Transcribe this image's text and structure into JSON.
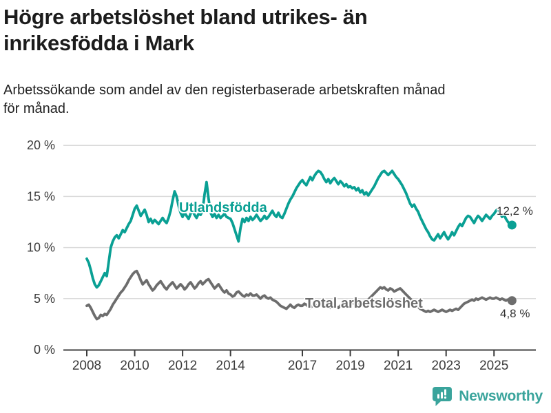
{
  "title": "Högre arbetslöshet bland utrikes- än inrikesfödda i Mark",
  "title_lines": [
    "Högre arbetslöshet bland utrikes- än",
    "inrikesfödda i Mark"
  ],
  "subtitle": "Arbetssökande som andel av den registerbaserade arbetskraften månad för månad.",
  "subtitle_lines": [
    "Arbetssökande som andel av den registerbaserade arbetskraften månad",
    "för månad."
  ],
  "footer": {
    "brand": "Newsworthy",
    "logo_icon": "bar-chart-speech-bubble-icon"
  },
  "colors": {
    "teal_series": "#0aa094",
    "gray_series": "#6d6d6d",
    "axis_text": "#3c3c3c",
    "axis_line": "#3c3c3c",
    "grid_line": "#dadada",
    "value_label": "#333333",
    "title_text": "#1c1c1c",
    "logo_teal": "#3aa49c"
  },
  "chart_data": {
    "type": "line",
    "title": "Högre arbetslöshet bland utrikes- än inrikesfödda i Mark",
    "subtitle": "Arbetssökande som andel av den registerbaserade arbetskraften månad för månad.",
    "frequency": "monthly",
    "x_start": {
      "year": 2008,
      "month": 1
    },
    "x_end": {
      "year": 2025,
      "month": 10
    },
    "x_tick_years": [
      2008,
      2010,
      2012,
      2014,
      2017,
      2019,
      2021,
      2023,
      2025
    ],
    "y_ticks": [
      {
        "value": 0,
        "label": "0 %"
      },
      {
        "value": 5,
        "label": "5 %"
      },
      {
        "value": 10,
        "label": "10 %"
      },
      {
        "value": 15,
        "label": "15 %"
      },
      {
        "value": 20,
        "label": "20 %"
      }
    ],
    "ylim": [
      0,
      20
    ],
    "grid": true,
    "legend_position": "inline-labels",
    "series": [
      {
        "name": "Utlandsfödda",
        "slug": "utlandsfodda",
        "color": "#0aa094",
        "end_label": "12,2 %",
        "values": [
          8.9,
          8.5,
          7.8,
          7.0,
          6.4,
          6.1,
          6.3,
          6.7,
          7.1,
          7.5,
          7.2,
          8.6,
          10.0,
          10.6,
          11.0,
          11.2,
          10.9,
          11.3,
          11.7,
          11.5,
          11.9,
          12.3,
          12.6,
          13.2,
          13.8,
          14.1,
          13.6,
          13.1,
          13.4,
          13.7,
          13.2,
          12.5,
          12.8,
          12.4,
          12.7,
          12.5,
          12.3,
          12.6,
          12.9,
          12.6,
          12.4,
          12.9,
          13.6,
          14.6,
          15.5,
          15.0,
          14.1,
          13.4,
          13.0,
          13.4,
          13.1,
          12.8,
          13.3,
          13.6,
          13.2,
          12.9,
          13.3,
          13.2,
          13.6,
          15.2,
          16.4,
          14.8,
          13.4,
          13.0,
          13.3,
          12.9,
          13.2,
          12.9,
          13.1,
          13.3,
          13.0,
          12.9,
          12.8,
          12.4,
          11.8,
          11.2,
          10.6,
          11.9,
          12.8,
          12.5,
          12.9,
          12.6,
          13.0,
          12.7,
          12.9,
          13.2,
          12.9,
          12.6,
          12.8,
          13.1,
          12.8,
          13.0,
          13.3,
          13.6,
          13.2,
          13.0,
          13.4,
          13.0,
          12.9,
          13.3,
          13.8,
          14.3,
          14.7,
          15.0,
          15.4,
          15.8,
          16.1,
          16.4,
          16.6,
          16.3,
          16.1,
          16.5,
          16.9,
          16.6,
          17.0,
          17.3,
          17.5,
          17.4,
          17.1,
          16.7,
          16.4,
          16.7,
          16.3,
          16.6,
          16.8,
          16.5,
          16.2,
          16.5,
          16.3,
          16.0,
          16.2,
          15.9,
          16.0,
          15.8,
          15.9,
          15.6,
          15.8,
          15.4,
          15.6,
          15.2,
          15.4,
          15.1,
          15.4,
          15.7,
          16.0,
          16.4,
          16.8,
          17.1,
          17.4,
          17.5,
          17.3,
          17.1,
          17.3,
          17.5,
          17.2,
          16.9,
          16.7,
          16.4,
          16.1,
          15.7,
          15.3,
          14.8,
          14.3,
          14.0,
          14.2,
          13.8,
          13.5,
          13.0,
          12.6,
          12.2,
          11.8,
          11.5,
          11.1,
          10.8,
          10.7,
          11.0,
          11.3,
          10.9,
          11.2,
          11.5,
          11.1,
          10.8,
          11.1,
          11.5,
          11.2,
          11.6,
          12.0,
          12.3,
          12.1,
          12.5,
          12.9,
          13.1,
          13.0,
          12.7,
          12.4,
          12.8,
          13.1,
          12.9,
          12.6,
          12.9,
          13.2,
          13.0,
          12.8,
          13.1,
          13.3,
          13.6,
          13.8,
          13.4,
          13.0,
          13.2,
          12.8,
          12.5,
          12.3,
          12.2
        ]
      },
      {
        "name": "Total arbetslöshet",
        "slug": "total-arbetsloshet",
        "color": "#6d6d6d",
        "end_label": "4,8 %",
        "values": [
          4.3,
          4.4,
          4.1,
          3.7,
          3.3,
          3.0,
          3.1,
          3.4,
          3.3,
          3.5,
          3.4,
          3.7,
          4.0,
          4.4,
          4.7,
          5.0,
          5.3,
          5.6,
          5.8,
          6.1,
          6.4,
          6.8,
          7.1,
          7.4,
          7.6,
          7.7,
          7.3,
          6.8,
          6.4,
          6.6,
          6.8,
          6.4,
          6.1,
          5.8,
          6.0,
          6.3,
          6.5,
          6.7,
          6.4,
          6.1,
          5.9,
          6.2,
          6.4,
          6.6,
          6.3,
          6.0,
          6.2,
          6.4,
          6.2,
          5.9,
          6.1,
          6.4,
          6.6,
          6.3,
          6.0,
          6.2,
          6.5,
          6.7,
          6.4,
          6.6,
          6.8,
          6.9,
          6.6,
          6.3,
          6.0,
          6.2,
          6.4,
          6.1,
          5.8,
          5.6,
          5.8,
          5.5,
          5.4,
          5.2,
          5.3,
          5.6,
          5.7,
          5.5,
          5.3,
          5.2,
          5.4,
          5.3,
          5.5,
          5.3,
          5.3,
          5.4,
          5.2,
          5.0,
          5.2,
          5.3,
          5.1,
          5.0,
          5.1,
          4.9,
          4.8,
          4.7,
          4.5,
          4.3,
          4.2,
          4.1,
          4.0,
          4.2,
          4.4,
          4.2,
          4.1,
          4.3,
          4.4,
          4.3,
          4.3,
          4.5,
          4.4,
          4.2,
          4.1,
          4.3,
          4.5,
          4.3,
          4.2,
          4.4,
          4.6,
          4.4,
          4.3,
          4.2,
          4.1,
          4.3,
          4.4,
          4.2,
          4.1,
          4.3,
          4.5,
          4.4,
          4.6,
          4.5,
          4.4,
          4.6,
          4.5,
          4.3,
          4.5,
          4.7,
          4.6,
          4.8,
          4.7,
          4.9,
          5.1,
          5.3,
          5.5,
          5.7,
          5.9,
          6.1,
          6.0,
          6.1,
          5.9,
          5.8,
          6.0,
          5.9,
          5.7,
          5.8,
          5.9,
          6.0,
          5.8,
          5.6,
          5.4,
          5.2,
          5.0,
          4.8,
          4.6,
          4.4,
          4.2,
          4.0,
          3.9,
          3.8,
          3.7,
          3.8,
          3.7,
          3.8,
          3.9,
          3.8,
          3.7,
          3.8,
          3.9,
          3.8,
          3.7,
          3.8,
          3.9,
          3.8,
          3.9,
          4.0,
          3.9,
          4.1,
          4.3,
          4.5,
          4.6,
          4.7,
          4.8,
          4.9,
          4.8,
          5.0,
          4.9,
          5.0,
          5.1,
          5.0,
          4.9,
          5.0,
          5.1,
          5.0,
          5.0,
          5.1,
          5.0,
          4.9,
          5.0,
          4.9,
          4.8,
          4.9,
          4.8,
          4.8
        ]
      }
    ]
  }
}
